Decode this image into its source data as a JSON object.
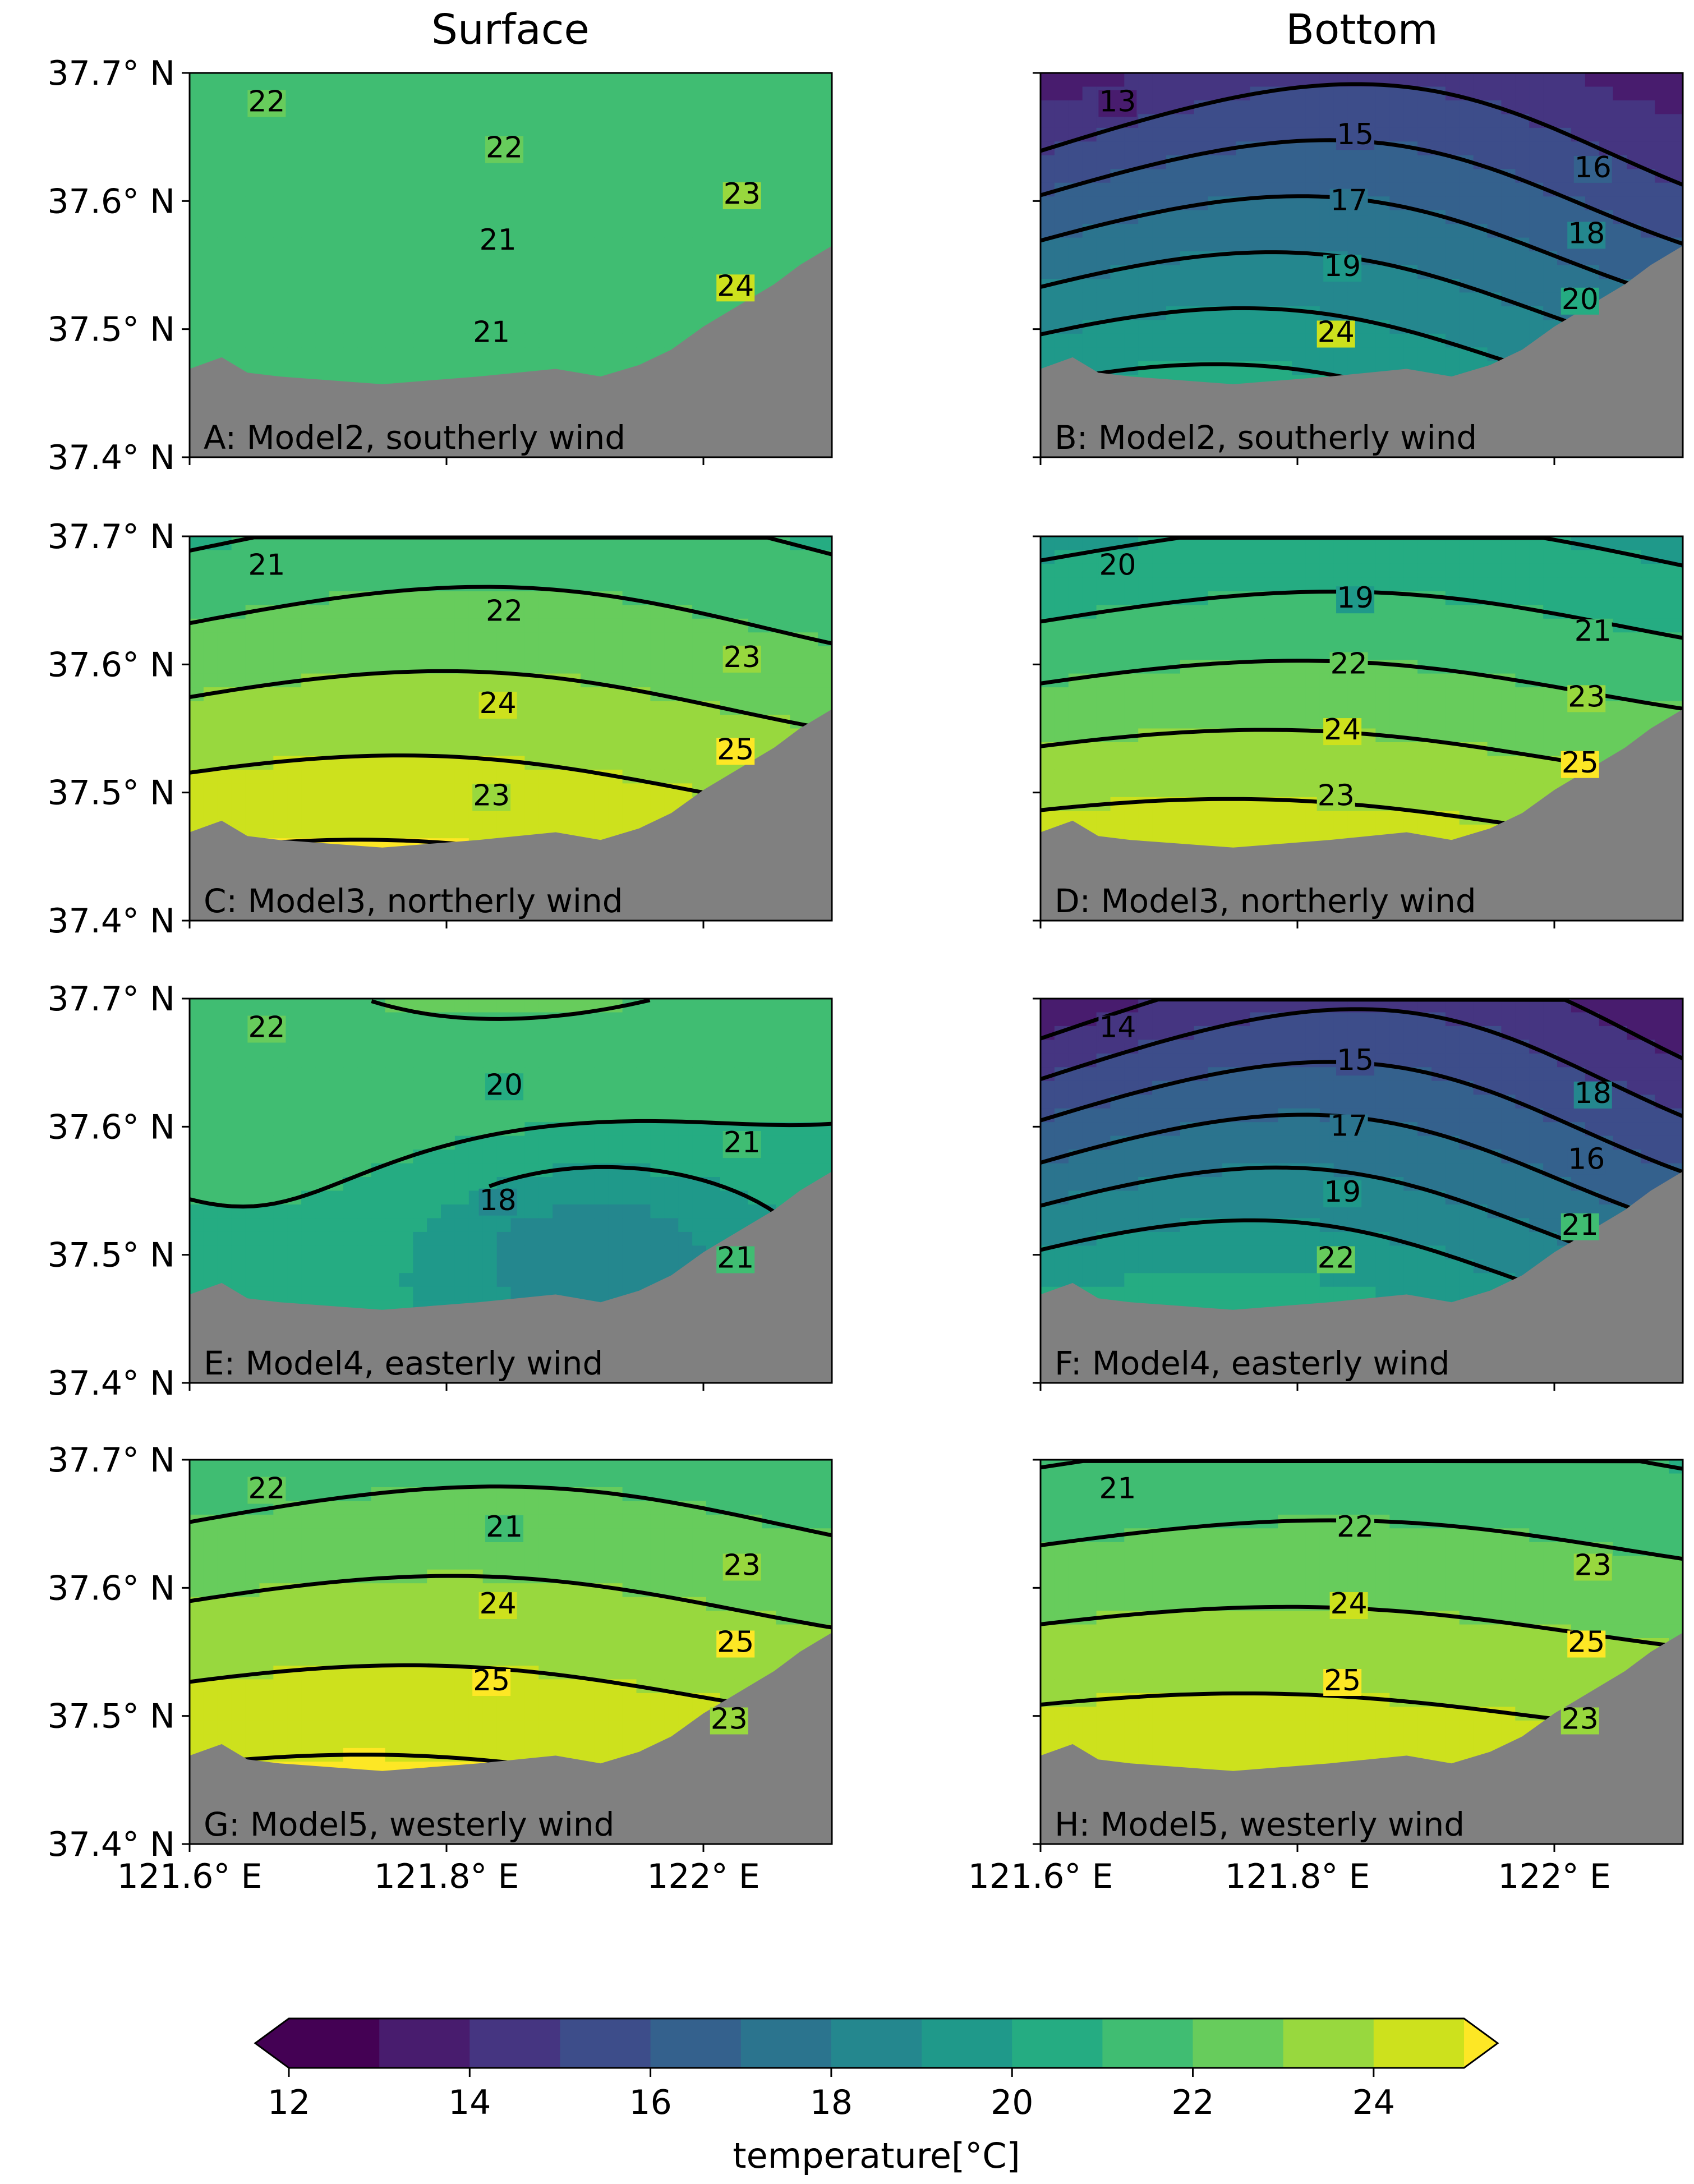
{
  "chart_data": {
    "type": "contour map",
    "colormap": "viridis",
    "column_titles": [
      "Surface",
      "Bottom"
    ],
    "ylabels": [
      "37.7° N",
      "37.6° N",
      "37.5° N",
      "37.4° N"
    ],
    "xlabels": [
      "121.6° E",
      "121.8° E",
      "122° E"
    ],
    "lat_range": [
      37.4,
      37.7
    ],
    "lon_range": [
      121.6,
      122.1
    ],
    "colorbar": {
      "title": "temperature[°C]",
      "levels": [
        12,
        13,
        14,
        15,
        16,
        17,
        18,
        19,
        20,
        21,
        22,
        23,
        24,
        25
      ],
      "tick_labels": [
        "12",
        "14",
        "16",
        "18",
        "20",
        "22",
        "24"
      ],
      "extend": "both",
      "colors": [
        "#440154",
        "#481c6e",
        "#453581",
        "#3d4d8a",
        "#34618d",
        "#2b748e",
        "#24878e",
        "#1f998a",
        "#25ac82",
        "#40bd72",
        "#67cc5c",
        "#98d83e",
        "#cde11d",
        "#fde725"
      ]
    },
    "panels": [
      {
        "label": "A: Model2, southerly wind",
        "depth": "Surface",
        "contours": [
          {
            "value": 22,
            "text": "22"
          },
          {
            "value": 22,
            "text": "22"
          },
          {
            "value": 23,
            "text": "23"
          },
          {
            "value": 21,
            "text": "21"
          },
          {
            "value": 24,
            "text": "24"
          },
          {
            "value": 21,
            "text": "21"
          }
        ],
        "field": {
          "base": 21.6,
          "grad_y": 0.2,
          "amp_x": 0.3,
          "bump": 0.0
        }
      },
      {
        "label": "B: Model2, southerly wind",
        "depth": "Bottom",
        "contours": [
          {
            "value": 13,
            "text": "13"
          },
          {
            "value": 15,
            "text": "15"
          },
          {
            "value": 16,
            "text": "16"
          },
          {
            "value": 17,
            "text": "17"
          },
          {
            "value": 18,
            "text": "18"
          },
          {
            "value": 19,
            "text": "19"
          },
          {
            "value": 20,
            "text": "20"
          },
          {
            "value": 24,
            "text": "24"
          }
        ],
        "field": {
          "base": 13.2,
          "grad_y": 7.5,
          "amp_x": 1.6,
          "bump": 0.0
        }
      },
      {
        "label": "C: Model3, northerly wind",
        "depth": "Surface",
        "contours": [
          {
            "value": 21,
            "text": "21"
          },
          {
            "value": 22,
            "text": "22"
          },
          {
            "value": 23,
            "text": "23"
          },
          {
            "value": 24,
            "text": "24"
          },
          {
            "value": 25,
            "text": "25"
          },
          {
            "value": 23,
            "text": "23"
          }
        ],
        "field": {
          "base": 20.8,
          "grad_y": 4.8,
          "amp_x": 0.6,
          "bump": 0.0
        }
      },
      {
        "label": "D: Model3, northerly wind",
        "depth": "Bottom",
        "contours": [
          {
            "value": 20,
            "text": "20"
          },
          {
            "value": 19,
            "text": "19"
          },
          {
            "value": 21,
            "text": "21"
          },
          {
            "value": 22,
            "text": "22"
          },
          {
            "value": 23,
            "text": "23"
          },
          {
            "value": 24,
            "text": "24"
          },
          {
            "value": 25,
            "text": "25"
          },
          {
            "value": 23,
            "text": "23"
          }
        ],
        "field": {
          "base": 19.6,
          "grad_y": 5.8,
          "amp_x": 0.6,
          "bump": 0.0
        }
      },
      {
        "label": "E: Model4, easterly wind",
        "depth": "Surface",
        "contours": [
          {
            "value": 22,
            "text": "22"
          },
          {
            "value": 20,
            "text": "20"
          },
          {
            "value": 21,
            "text": "21"
          },
          {
            "value": 18,
            "text": "18"
          },
          {
            "value": 21,
            "text": "21"
          }
        ],
        "field": {
          "base": 21.7,
          "grad_y": -1.6,
          "amp_x": 0.4,
          "bump": -2.5
        }
      },
      {
        "label": "F: Model4, easterly wind",
        "depth": "Bottom",
        "contours": [
          {
            "value": 14,
            "text": "14"
          },
          {
            "value": 15,
            "text": "15"
          },
          {
            "value": 18,
            "text": "18"
          },
          {
            "value": 17,
            "text": "17"
          },
          {
            "value": 16,
            "text": "16"
          },
          {
            "value": 19,
            "text": "19"
          },
          {
            "value": 21,
            "text": "21"
          },
          {
            "value": 22,
            "text": "22"
          }
        ],
        "field": {
          "base": 13.0,
          "grad_y": 8.0,
          "amp_x": 1.8,
          "bump": 0.0
        }
      },
      {
        "label": "G: Model5, westerly wind",
        "depth": "Surface",
        "contours": [
          {
            "value": 22,
            "text": "22"
          },
          {
            "value": 21,
            "text": "21"
          },
          {
            "value": 23,
            "text": "23"
          },
          {
            "value": 24,
            "text": "24"
          },
          {
            "value": 25,
            "text": "25"
          },
          {
            "value": 25,
            "text": "25"
          },
          {
            "value": 23,
            "text": "23"
          }
        ],
        "field": {
          "base": 21.2,
          "grad_y": 4.5,
          "amp_x": 0.5,
          "bump": 0.0
        }
      },
      {
        "label": "H: Model5, westerly wind",
        "depth": "Bottom",
        "contours": [
          {
            "value": 21,
            "text": "21"
          },
          {
            "value": 22,
            "text": "22"
          },
          {
            "value": 23,
            "text": "23"
          },
          {
            "value": 24,
            "text": "24"
          },
          {
            "value": 25,
            "text": "25"
          },
          {
            "value": 25,
            "text": "25"
          },
          {
            "value": 23,
            "text": "23"
          }
        ],
        "field": {
          "base": 20.9,
          "grad_y": 4.6,
          "amp_x": 0.4,
          "bump": 0.0
        }
      }
    ]
  },
  "colors": {
    "land": "#808080",
    "contour_line": "#000000"
  }
}
